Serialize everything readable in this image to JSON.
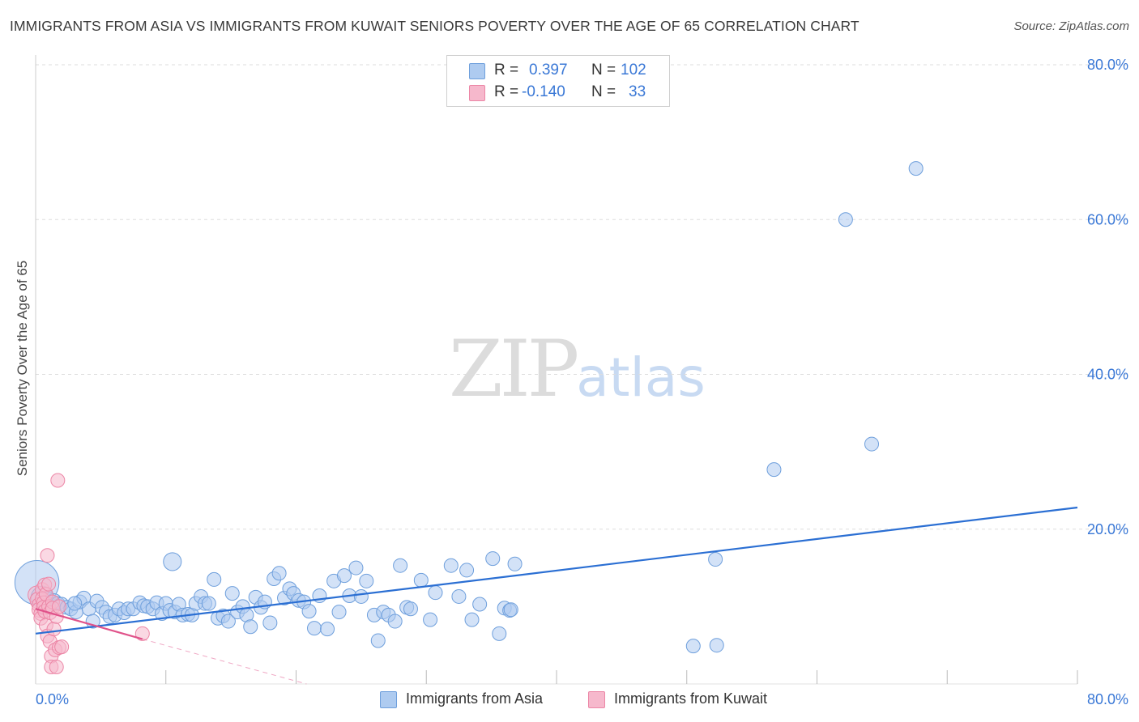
{
  "title": "IMMIGRANTS FROM ASIA VS IMMIGRANTS FROM KUWAIT SENIORS POVERTY OVER THE AGE OF 65 CORRELATION CHART",
  "source": "Source: ZipAtlas.com",
  "watermark": {
    "zip": "ZIP",
    "atlas": "atlas"
  },
  "legend": {
    "rows": [
      {
        "r_label": "R =",
        "r_value": "0.397",
        "n_label": "N =",
        "n_value": "102"
      },
      {
        "r_label": "R =",
        "r_value": "-0.140",
        "n_label": "N =",
        "n_value": "33"
      }
    ]
  },
  "bottom_legend": [
    "Immigrants from Asia",
    "Immigrants from Kuwait"
  ],
  "colors": {
    "asia_fill": "#aecbf0",
    "asia_stroke": "#6e9fdc",
    "asia_line": "#2b6fd3",
    "kuwait_fill": "#f6b8cc",
    "kuwait_stroke": "#ec86a6",
    "kuwait_line": "#e0528a",
    "tick_label": "#3a78d6",
    "grid": "#dddddd"
  },
  "chart_data": {
    "type": "scatter",
    "title": "IMMIGRANTS FROM ASIA VS IMMIGRANTS FROM KUWAIT SENIORS POVERTY OVER THE AGE OF 65 CORRELATION CHART",
    "xlabel": "",
    "ylabel": "Seniors Poverty Over the Age of 65",
    "xlim": [
      0,
      80
    ],
    "ylim": [
      0,
      80
    ],
    "x_tick_labels": [
      "0.0%",
      "80.0%"
    ],
    "y_ticks": [
      20,
      40,
      60,
      80
    ],
    "y_tick_labels": [
      "20.0%",
      "40.0%",
      "60.0%",
      "80.0%"
    ],
    "grid": true,
    "series": [
      {
        "name": "Immigrants from Asia",
        "r": 0.397,
        "n": 102,
        "trend": {
          "x": [
            0,
            80
          ],
          "y": [
            6.5,
            22.8
          ]
        },
        "points": [
          [
            0.1,
            13.1,
            3.2
          ],
          [
            0.5,
            11.2,
            1.6
          ],
          [
            0.9,
            10.7,
            1.3
          ],
          [
            1.1,
            10.2,
            1.1
          ],
          [
            1.4,
            10.6,
            1.2
          ],
          [
            1.7,
            10.4,
            1.0
          ],
          [
            2.0,
            10.3,
            1.0
          ],
          [
            2.4,
            9.9,
            1.0
          ],
          [
            2.7,
            9.7,
            1.0
          ],
          [
            3.1,
            9.3,
            1.0
          ],
          [
            3.4,
            10.6,
            1.0
          ],
          [
            3.7,
            11.1,
            1.0
          ],
          [
            4.1,
            9.7,
            1.0
          ],
          [
            4.4,
            8.1,
            1.0
          ],
          [
            4.7,
            10.7,
            1.0
          ],
          [
            5.1,
            9.9,
            1.0
          ],
          [
            5.4,
            9.3,
            1.0
          ],
          [
            5.7,
            8.7,
            1.0
          ],
          [
            6.1,
            8.9,
            1.0
          ],
          [
            6.4,
            9.7,
            1.0
          ],
          [
            6.8,
            9.2,
            1.0
          ],
          [
            7.1,
            9.7,
            1.0
          ],
          [
            7.5,
            9.7,
            1.0
          ],
          [
            8.0,
            10.5,
            1.0
          ],
          [
            8.3,
            10.1,
            1.0
          ],
          [
            8.6,
            10.0,
            1.0
          ],
          [
            9.0,
            9.7,
            1.0
          ],
          [
            9.3,
            10.5,
            1.0
          ],
          [
            9.7,
            9.1,
            1.0
          ],
          [
            10.0,
            10.4,
            1.0
          ],
          [
            10.3,
            9.5,
            1.0
          ],
          [
            10.7,
            9.3,
            1.0
          ],
          [
            11.0,
            10.3,
            1.0
          ],
          [
            11.3,
            8.9,
            1.0
          ],
          [
            11.7,
            9.0,
            1.0
          ],
          [
            12.0,
            8.9,
            1.0
          ],
          [
            12.3,
            10.4,
            1.0
          ],
          [
            12.7,
            11.3,
            1.0
          ],
          [
            13.0,
            10.4,
            1.0
          ],
          [
            13.3,
            10.4,
            1.0
          ],
          [
            13.7,
            13.5,
            1.0
          ],
          [
            14.0,
            8.5,
            1.0
          ],
          [
            14.4,
            8.8,
            1.0
          ],
          [
            14.8,
            8.1,
            1.0
          ],
          [
            15.1,
            11.7,
            1.0
          ],
          [
            15.5,
            9.3,
            1.0
          ],
          [
            15.9,
            10.0,
            1.0
          ],
          [
            16.2,
            8.9,
            1.0
          ],
          [
            16.5,
            7.4,
            1.0
          ],
          [
            16.9,
            11.2,
            1.0
          ],
          [
            17.3,
            9.9,
            1.0
          ],
          [
            17.6,
            10.6,
            1.0
          ],
          [
            18.0,
            7.9,
            1.0
          ],
          [
            18.3,
            13.6,
            1.0
          ],
          [
            18.7,
            14.3,
            1.0
          ],
          [
            19.1,
            11.1,
            1.0
          ],
          [
            19.5,
            12.3,
            1.0
          ],
          [
            19.8,
            11.7,
            1.0
          ],
          [
            20.2,
            10.8,
            1.0
          ],
          [
            20.6,
            10.6,
            1.0
          ],
          [
            21.0,
            9.4,
            1.0
          ],
          [
            21.4,
            7.2,
            1.0
          ],
          [
            21.8,
            11.4,
            1.0
          ],
          [
            22.4,
            7.1,
            1.0
          ],
          [
            22.9,
            13.3,
            1.0
          ],
          [
            23.3,
            9.3,
            1.0
          ],
          [
            23.7,
            14.0,
            1.0
          ],
          [
            24.1,
            11.4,
            1.0
          ],
          [
            24.6,
            15.0,
            1.0
          ],
          [
            25.0,
            11.3,
            1.0
          ],
          [
            25.4,
            13.3,
            1.0
          ],
          [
            26.0,
            8.9,
            1.0
          ],
          [
            26.3,
            5.6,
            1.0
          ],
          [
            26.7,
            9.3,
            1.0
          ],
          [
            27.1,
            8.9,
            1.0
          ],
          [
            27.6,
            8.1,
            1.0
          ],
          [
            28.0,
            15.3,
            1.0
          ],
          [
            28.5,
            9.9,
            1.0
          ],
          [
            28.8,
            9.7,
            1.0
          ],
          [
            29.6,
            13.4,
            1.0
          ],
          [
            30.3,
            8.3,
            1.0
          ],
          [
            30.7,
            11.8,
            1.0
          ],
          [
            31.9,
            15.3,
            1.0
          ],
          [
            32.5,
            11.3,
            1.0
          ],
          [
            33.1,
            14.7,
            1.0
          ],
          [
            33.5,
            8.3,
            1.0
          ],
          [
            34.1,
            10.3,
            1.0
          ],
          [
            35.1,
            16.2,
            1.0
          ],
          [
            35.6,
            6.5,
            1.0
          ],
          [
            36.0,
            9.8,
            1.0
          ],
          [
            36.4,
            9.5,
            1.0
          ],
          [
            36.8,
            15.5,
            1.0
          ],
          [
            36.5,
            9.6,
            1.0
          ],
          [
            50.5,
            4.9,
            1.0
          ],
          [
            52.3,
            5.0,
            1.0
          ],
          [
            52.2,
            16.1,
            1.0
          ],
          [
            56.7,
            27.7,
            1.0
          ],
          [
            62.2,
            60.0,
            1.0
          ],
          [
            64.2,
            31.0,
            1.0
          ],
          [
            67.6,
            66.6,
            1.0
          ],
          [
            10.5,
            15.8,
            1.3
          ],
          [
            3.0,
            10.4,
            1.0
          ]
        ]
      },
      {
        "name": "Immigrants from Kuwait",
        "r": -0.14,
        "n": 33,
        "trend": {
          "x": [
            0,
            8.2
          ],
          "y": [
            9.7,
            5.8
          ]
        },
        "trend_extended": {
          "x": [
            8.2,
            20.8
          ],
          "y": [
            5.8,
            0
          ]
        },
        "points": [
          [
            0.1,
            11.5,
            1.3
          ],
          [
            0.2,
            10.8,
            1.2
          ],
          [
            0.3,
            10.2,
            1.1
          ],
          [
            0.3,
            9.6,
            1.1
          ],
          [
            0.4,
            9.1,
            1.0
          ],
          [
            0.4,
            8.5,
            1.0
          ],
          [
            0.5,
            12.2,
            1.0
          ],
          [
            0.5,
            11.0,
            1.0
          ],
          [
            0.6,
            10.5,
            1.0
          ],
          [
            0.6,
            9.9,
            1.0
          ],
          [
            0.7,
            9.4,
            1.0
          ],
          [
            0.7,
            12.8,
            1.0
          ],
          [
            0.8,
            11.6,
            1.0
          ],
          [
            0.8,
            7.6,
            1.0
          ],
          [
            0.9,
            6.2,
            1.0
          ],
          [
            0.9,
            16.6,
            1.0
          ],
          [
            1.0,
            12.9,
            1.0
          ],
          [
            1.0,
            10.0,
            1.0
          ],
          [
            1.1,
            9.2,
            1.0
          ],
          [
            1.1,
            5.5,
            1.0
          ],
          [
            1.2,
            3.6,
            1.0
          ],
          [
            1.2,
            2.2,
            1.0
          ],
          [
            1.3,
            10.6,
            1.0
          ],
          [
            1.3,
            9.8,
            1.0
          ],
          [
            1.4,
            7.1,
            1.0
          ],
          [
            1.5,
            4.4,
            1.0
          ],
          [
            1.6,
            8.7,
            1.0
          ],
          [
            1.6,
            2.2,
            1.0
          ],
          [
            1.7,
            26.3,
            1.0
          ],
          [
            1.8,
            10.0,
            1.0
          ],
          [
            1.8,
            4.7,
            1.0
          ],
          [
            2.0,
            4.8,
            1.0
          ],
          [
            8.2,
            6.5,
            1.0
          ]
        ]
      }
    ]
  }
}
